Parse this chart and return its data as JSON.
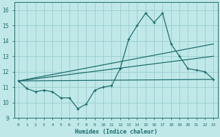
{
  "xlabel": "Humidex (Indice chaleur)",
  "bg_color": "#c0e8e8",
  "grid_color": "#98cccc",
  "line_color": "#1a6b6b",
  "x_ticks": [
    0,
    1,
    2,
    3,
    4,
    5,
    6,
    7,
    8,
    9,
    10,
    11,
    12,
    13,
    14,
    15,
    16,
    17,
    18,
    19,
    20,
    21,
    22,
    23
  ],
  "ylim": [
    9,
    16.5
  ],
  "xlim": [
    -0.5,
    23.5
  ],
  "y_ticks": [
    9,
    10,
    11,
    12,
    13,
    14,
    15,
    16
  ],
  "main_line": [
    11.4,
    10.9,
    10.7,
    10.8,
    10.7,
    10.3,
    10.3,
    9.6,
    9.9,
    10.8,
    11.0,
    11.1,
    12.2,
    14.1,
    15.0,
    15.8,
    15.2,
    15.8,
    13.8,
    13.0,
    12.2,
    12.1,
    12.0,
    11.5
  ],
  "reg_lines": [
    {
      "x": [
        0,
        23
      ],
      "y": [
        11.4,
        11.5
      ]
    },
    {
      "x": [
        0,
        23
      ],
      "y": [
        11.4,
        13.0
      ]
    },
    {
      "x": [
        0,
        23
      ],
      "y": [
        11.4,
        13.8
      ]
    }
  ]
}
